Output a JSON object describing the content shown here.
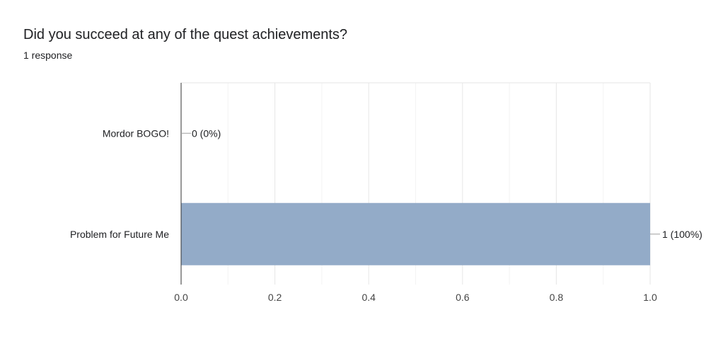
{
  "question": {
    "title": "Did you succeed at any of the quest achievements?",
    "responses": "1 response"
  },
  "chart_data": {
    "type": "bar",
    "orientation": "horizontal",
    "categories": [
      "Mordor BOGO!",
      "Problem for Future Me"
    ],
    "values": [
      0,
      1
    ],
    "value_labels": [
      "0 (0%)",
      "1 (100%)"
    ],
    "xlim": [
      0,
      1.0
    ],
    "xticks": [
      "0.0",
      "0.2",
      "0.4",
      "0.6",
      "0.8",
      "1.0"
    ],
    "grid": true,
    "bar_color": "#93abc8"
  }
}
